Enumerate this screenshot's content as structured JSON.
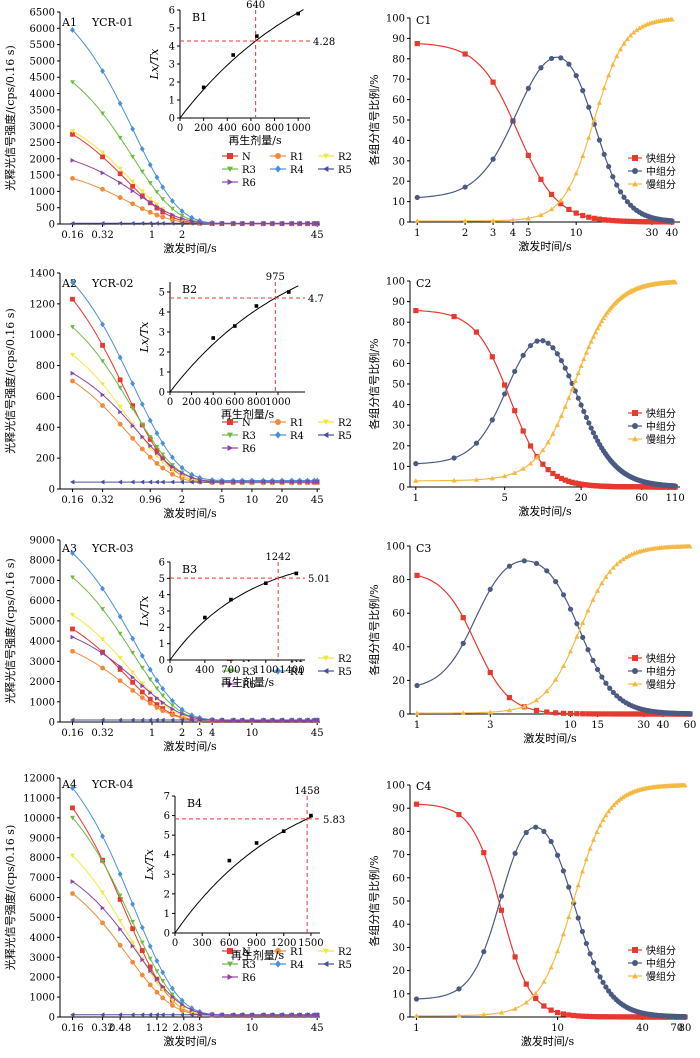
{
  "palette": {
    "N": "#e8392f",
    "R1": "#f08a3c",
    "R2": "#f5e63c",
    "R3": "#6dbb45",
    "R4": "#4a90d9",
    "R5": "#4a4e9c",
    "R6": "#8e44ad",
    "fast": "#e8392f",
    "medium": "#4a5a82",
    "slow": "#f5b942",
    "refline": "#e8392f"
  },
  "markers": {
    "N": "square",
    "R1": "circle",
    "R2": "triangle-down",
    "R3": "triangle-down",
    "R4": "diamond",
    "R5": "triangle-left",
    "R6": "triangle-right"
  },
  "common": {
    "a_ylabel": "光释光信号强度/(cps/0.16 s)",
    "a_xlabel": "激发时间/s",
    "b_ylabel": "Lx/Tx",
    "b_xlabel": "再生剂量/s",
    "c_ylabel": "各组分信号比例/%",
    "c_xlabel": "激发时间/s",
    "series_names": [
      "N",
      "R1",
      "R2",
      "R3",
      "R4",
      "R5",
      "R6"
    ],
    "component_names": [
      "快组分",
      "中组分",
      "慢组分"
    ]
  },
  "chart_data": [
    {
      "type": "line",
      "id": "A1",
      "panel_label": "A1",
      "sample": "YCR-01",
      "scale_x": "log",
      "xlim": [
        0.12,
        48
      ],
      "ylim": [
        0,
        6500
      ],
      "xticks": [
        0.16,
        0.32,
        1,
        2,
        45
      ],
      "xtick_labels": [
        "0.16",
        "0.32",
        "1",
        "2",
        "45"
      ],
      "yticks": [
        0,
        500,
        1000,
        1500,
        2000,
        2500,
        3000,
        3500,
        4000,
        4500,
        5000,
        5500,
        6000,
        6500
      ],
      "initial": {
        "N": 2750,
        "R1": 1400,
        "R2": 2850,
        "R3": 4350,
        "R4": 5950,
        "R5": 20,
        "R6": 1950
      },
      "tail": {
        "N": 10,
        "R1": 10,
        "R2": 10,
        "R3": 12,
        "R4": 15,
        "R5": 20,
        "R6": 10
      },
      "inset": {
        "type": "scatter",
        "id": "B1",
        "panel_label": "B1",
        "x": [
          200,
          450,
          650,
          1000
        ],
        "y": [
          1.7,
          3.5,
          4.55,
          5.8
        ],
        "xlim": [
          0,
          1100
        ],
        "ylim": [
          0,
          6
        ],
        "xticks": [
          0,
          200,
          400,
          600,
          800,
          1000
        ],
        "yticks": [
          0,
          1,
          2,
          3,
          4,
          5,
          6
        ],
        "equivalent_dose": 640,
        "equivalent_dose_label": "640",
        "natural_ratio": 4.28,
        "natural_ratio_label": "4.28",
        "fit_k": 1200
      }
    },
    {
      "type": "line",
      "id": "A2",
      "panel_label": "A2",
      "sample": "YCR-02",
      "scale_x": "log",
      "xlim": [
        0.12,
        48
      ],
      "ylim": [
        0,
        1400
      ],
      "xticks": [
        0.16,
        0.32,
        0.96,
        2,
        5,
        10,
        20,
        45
      ],
      "xtick_labels": [
        "0.16",
        "0.32",
        "0.96",
        "2",
        "5",
        "10",
        "20",
        "45"
      ],
      "yticks": [
        0,
        200,
        400,
        600,
        800,
        1000,
        1200,
        1400
      ],
      "initial": {
        "N": 1230,
        "R1": 700,
        "R2": 870,
        "R3": 1050,
        "R4": 1340,
        "R5": 45,
        "R6": 750
      },
      "tail": {
        "N": 45,
        "R1": 40,
        "R2": 45,
        "R3": 50,
        "R4": 55,
        "R5": 45,
        "R6": 45
      },
      "inset": {
        "type": "scatter",
        "id": "B2",
        "panel_label": "B2",
        "x": [
          400,
          600,
          800,
          1100
        ],
        "y": [
          2.7,
          3.3,
          4.3,
          5.0
        ],
        "xlim": [
          0,
          1250
        ],
        "ylim": [
          0,
          5.5
        ],
        "xticks": [
          0,
          200,
          400,
          600,
          800,
          1000
        ],
        "yticks": [
          0,
          1,
          2,
          3,
          4,
          5
        ],
        "equivalent_dose": 975,
        "equivalent_dose_label": "975",
        "natural_ratio": 4.7,
        "natural_ratio_label": "4.7",
        "fit_k": 1200
      }
    },
    {
      "type": "line",
      "id": "A3",
      "panel_label": "A3",
      "sample": "YCR-03",
      "scale_x": "log",
      "xlim": [
        0.12,
        48
      ],
      "ylim": [
        0,
        9000
      ],
      "xticks": [
        0.16,
        0.32,
        1,
        2,
        3,
        4,
        10,
        45
      ],
      "xtick_labels": [
        "0.16",
        "0.32",
        "1",
        "2",
        "3",
        "4",
        "10",
        "45"
      ],
      "yticks": [
        0,
        1000,
        2000,
        3000,
        4000,
        5000,
        6000,
        7000,
        8000,
        9000
      ],
      "initial": {
        "N": 4600,
        "R1": 3500,
        "R2": 5300,
        "R3": 7150,
        "R4": 8350,
        "R5": 150,
        "R6": 4200
      },
      "tail": {
        "N": 70,
        "R1": 60,
        "R2": 70,
        "R3": 80,
        "R4": 90,
        "R5": 100,
        "R6": 70
      },
      "inset": {
        "type": "scatter",
        "id": "B3",
        "panel_label": "B3",
        "x": [
          400,
          700,
          1100,
          1450
        ],
        "y": [
          2.6,
          3.7,
          4.7,
          5.3
        ],
        "xlim": [
          0,
          1550
        ],
        "ylim": [
          0,
          6
        ],
        "xticks": [
          0,
          400,
          700,
          1100,
          1400
        ],
        "yticks": [
          0,
          1,
          2,
          3,
          4,
          5,
          6
        ],
        "equivalent_dose": 1242,
        "equivalent_dose_label": "1242",
        "natural_ratio": 5.01,
        "natural_ratio_label": "5.01",
        "fit_k": 900
      }
    },
    {
      "type": "line",
      "id": "A4",
      "panel_label": "A4",
      "sample": "YCR-04",
      "scale_x": "log",
      "xlim": [
        0.12,
        48
      ],
      "ylim": [
        0,
        12000
      ],
      "xticks": [
        0.16,
        0.32,
        0.48,
        1.12,
        2.08,
        3,
        10,
        45
      ],
      "xtick_labels": [
        "0.16",
        "0.32",
        "0.48",
        "1.12",
        "2.08",
        "3",
        "10",
        "45"
      ],
      "yticks": [
        0,
        1000,
        2000,
        3000,
        4000,
        5000,
        6000,
        7000,
        8000,
        9000,
        10000,
        11000,
        12000
      ],
      "initial": {
        "N": 10500,
        "R1": 6200,
        "R2": 8100,
        "R3": 10000,
        "R4": 11500,
        "R5": 150,
        "R6": 6800
      },
      "tail": {
        "N": 80,
        "R1": 70,
        "R2": 80,
        "R3": 90,
        "R4": 100,
        "R5": 110,
        "R6": 80
      },
      "inset": {
        "type": "scatter",
        "id": "B4",
        "panel_label": "B4",
        "x": [
          600,
          900,
          1200,
          1500
        ],
        "y": [
          3.7,
          4.6,
          5.2,
          6.0
        ],
        "xlim": [
          0,
          1600
        ],
        "ylim": [
          0,
          7
        ],
        "xticks": [
          0,
          300,
          600,
          900,
          1200,
          1500
        ],
        "yticks": [
          0,
          1,
          2,
          3,
          4,
          5,
          6,
          7
        ],
        "equivalent_dose": 1458,
        "equivalent_dose_label": "1458",
        "natural_ratio": 5.83,
        "natural_ratio_label": "5.83",
        "fit_k": 1300
      }
    },
    {
      "type": "line",
      "id": "C1",
      "panel_label": "C1",
      "scale_x": "log",
      "xlim": [
        0.9,
        45
      ],
      "ylim": [
        0,
        100
      ],
      "t_max": 40,
      "xticks": [
        1,
        2,
        3,
        4,
        5,
        10,
        30,
        40
      ],
      "xtick_labels": [
        "1",
        "2",
        "3",
        "4",
        "5",
        "10",
        "30",
        "40"
      ],
      "yticks": [
        0,
        10,
        20,
        30,
        40,
        50,
        60,
        70,
        80,
        90,
        100
      ],
      "fast_start": 88,
      "fast_half_time": 4.3,
      "fast_steepness": 3.5,
      "slow_start": 0.5,
      "slow_half_time": 13,
      "slow_steepness": 4.5
    },
    {
      "type": "line",
      "id": "C2",
      "panel_label": "C2",
      "scale_x": "log",
      "xlim": [
        0.9,
        120
      ],
      "ylim": [
        0,
        100
      ],
      "t_max": 110,
      "xticks": [
        1,
        5,
        20,
        60,
        110
      ],
      "xtick_labels": [
        "1",
        "5",
        "20",
        "60",
        "110"
      ],
      "yticks": [
        0,
        10,
        20,
        30,
        40,
        50,
        60,
        70,
        80,
        90,
        100
      ],
      "fast_start": 86,
      "fast_half_time": 5.5,
      "fast_steepness": 3.2,
      "slow_start": 3,
      "slow_half_time": 18,
      "slow_steepness": 2.9
    },
    {
      "type": "line",
      "id": "C3",
      "panel_label": "C3",
      "scale_x": "log",
      "xlim": [
        0.9,
        60
      ],
      "ylim": [
        0,
        100
      ],
      "t_max": 60,
      "xticks": [
        1,
        3,
        10,
        15,
        30,
        40,
        60
      ],
      "xtick_labels": [
        "1",
        "3",
        "10",
        "15",
        "30",
        "40",
        "60"
      ],
      "yticks": [
        0,
        20,
        40,
        60,
        80,
        100
      ],
      "fast_start": 85,
      "fast_half_time": 2.4,
      "fast_steepness": 4.0,
      "slow_start": 0.5,
      "slow_half_time": 11.5,
      "slow_steepness": 3.8
    },
    {
      "type": "line",
      "id": "C4",
      "panel_label": "C4",
      "scale_x": "log",
      "xlim": [
        0.9,
        80
      ],
      "ylim": [
        0,
        100
      ],
      "t_max": 80,
      "xticks": [
        1,
        10,
        40,
        70,
        80
      ],
      "xtick_labels": [
        "1",
        "10",
        "40",
        "70",
        "80"
      ],
      "yticks": [
        0,
        10,
        20,
        30,
        40,
        50,
        60,
        70,
        80,
        90,
        100
      ],
      "fast_start": 92,
      "fast_half_time": 4.0,
      "fast_steepness": 4.2,
      "slow_start": 0.5,
      "slow_half_time": 13,
      "slow_steepness": 3.6
    }
  ]
}
